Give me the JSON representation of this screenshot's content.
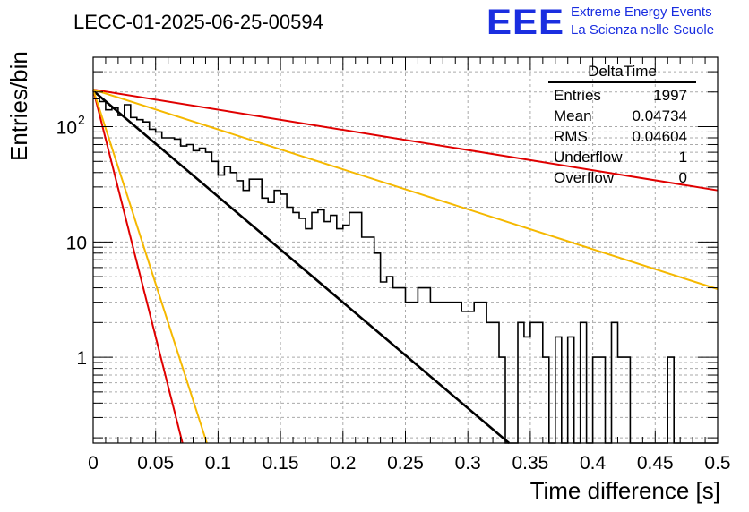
{
  "header": {
    "run_title": "LECC-01-2025-06-25-00594",
    "logo_text": "EEE",
    "logo_line1": "Extreme Energy Events",
    "logo_line2": "La Scienza nelle Scuole",
    "logo_color": "#1a2ee0"
  },
  "stats": {
    "title": "DeltaTime",
    "rows": [
      {
        "label": "Entries",
        "value": "1997"
      },
      {
        "label": "Mean",
        "value": "0.04734"
      },
      {
        "label": "RMS",
        "value": "0.04604"
      },
      {
        "label": "Underflow",
        "value": "1"
      },
      {
        "label": "Overflow",
        "value": "0"
      }
    ]
  },
  "chart_data": {
    "type": "line",
    "xlabel": "Time difference [s]",
    "ylabel": "Entries/bin",
    "xlim": [
      0,
      0.5
    ],
    "ylim": [
      0.18,
      400
    ],
    "yscale": "log",
    "grid": true,
    "x_ticks": [
      "0",
      "0.05",
      "0.1",
      "0.15",
      "0.2",
      "0.25",
      "0.3",
      "0.35",
      "0.4",
      "0.45",
      "0.5"
    ],
    "y_ticks": [
      {
        "value": 1,
        "label": "1"
      },
      {
        "value": 10,
        "label": "10"
      },
      {
        "value": 100,
        "label": "10",
        "exponent": "2"
      }
    ],
    "histogram": {
      "bin_width": 0.005,
      "x_start": 0,
      "color": "#000000",
      "values": [
        175,
        165,
        140,
        145,
        125,
        155,
        120,
        115,
        110,
        95,
        90,
        80,
        80,
        78,
        68,
        70,
        62,
        65,
        60,
        50,
        38,
        45,
        40,
        34,
        28,
        35,
        35,
        24,
        22,
        28,
        26,
        20,
        18,
        16,
        13,
        18,
        19,
        15,
        17,
        13,
        14,
        18,
        18,
        11,
        11,
        8,
        4.5,
        5,
        4,
        4,
        3,
        3,
        4,
        4,
        3,
        3,
        3,
        3,
        3,
        2.5,
        2.5,
        3,
        3,
        2,
        2,
        1,
        0.15,
        0.15,
        2,
        1.5,
        2,
        2,
        1,
        0.15,
        1.5,
        0.15,
        1.5,
        0.15,
        2,
        0.15,
        1,
        1,
        0.15,
        2,
        1,
        1,
        0.15,
        0.15,
        0.15,
        0.15,
        0.15,
        0.15,
        1,
        0.15,
        0.15,
        0.15,
        0.15,
        0.15,
        0.15,
        0.15
      ]
    },
    "fits": [
      {
        "color": "#000000",
        "points": [
          [
            0,
            205
          ],
          [
            0.333,
            0.18
          ]
        ]
      },
      {
        "color": "#e00000",
        "points": [
          [
            0,
            210
          ],
          [
            0.5,
            28
          ]
        ]
      },
      {
        "color": "#f5b800",
        "points": [
          [
            0,
            210
          ],
          [
            0.5,
            3.9
          ]
        ]
      },
      {
        "color": "#e00000",
        "points": [
          [
            0,
            210
          ],
          [
            0.0715,
            0.18
          ]
        ]
      },
      {
        "color": "#f5b800",
        "points": [
          [
            0,
            210
          ],
          [
            0.091,
            0.18
          ]
        ]
      }
    ]
  }
}
